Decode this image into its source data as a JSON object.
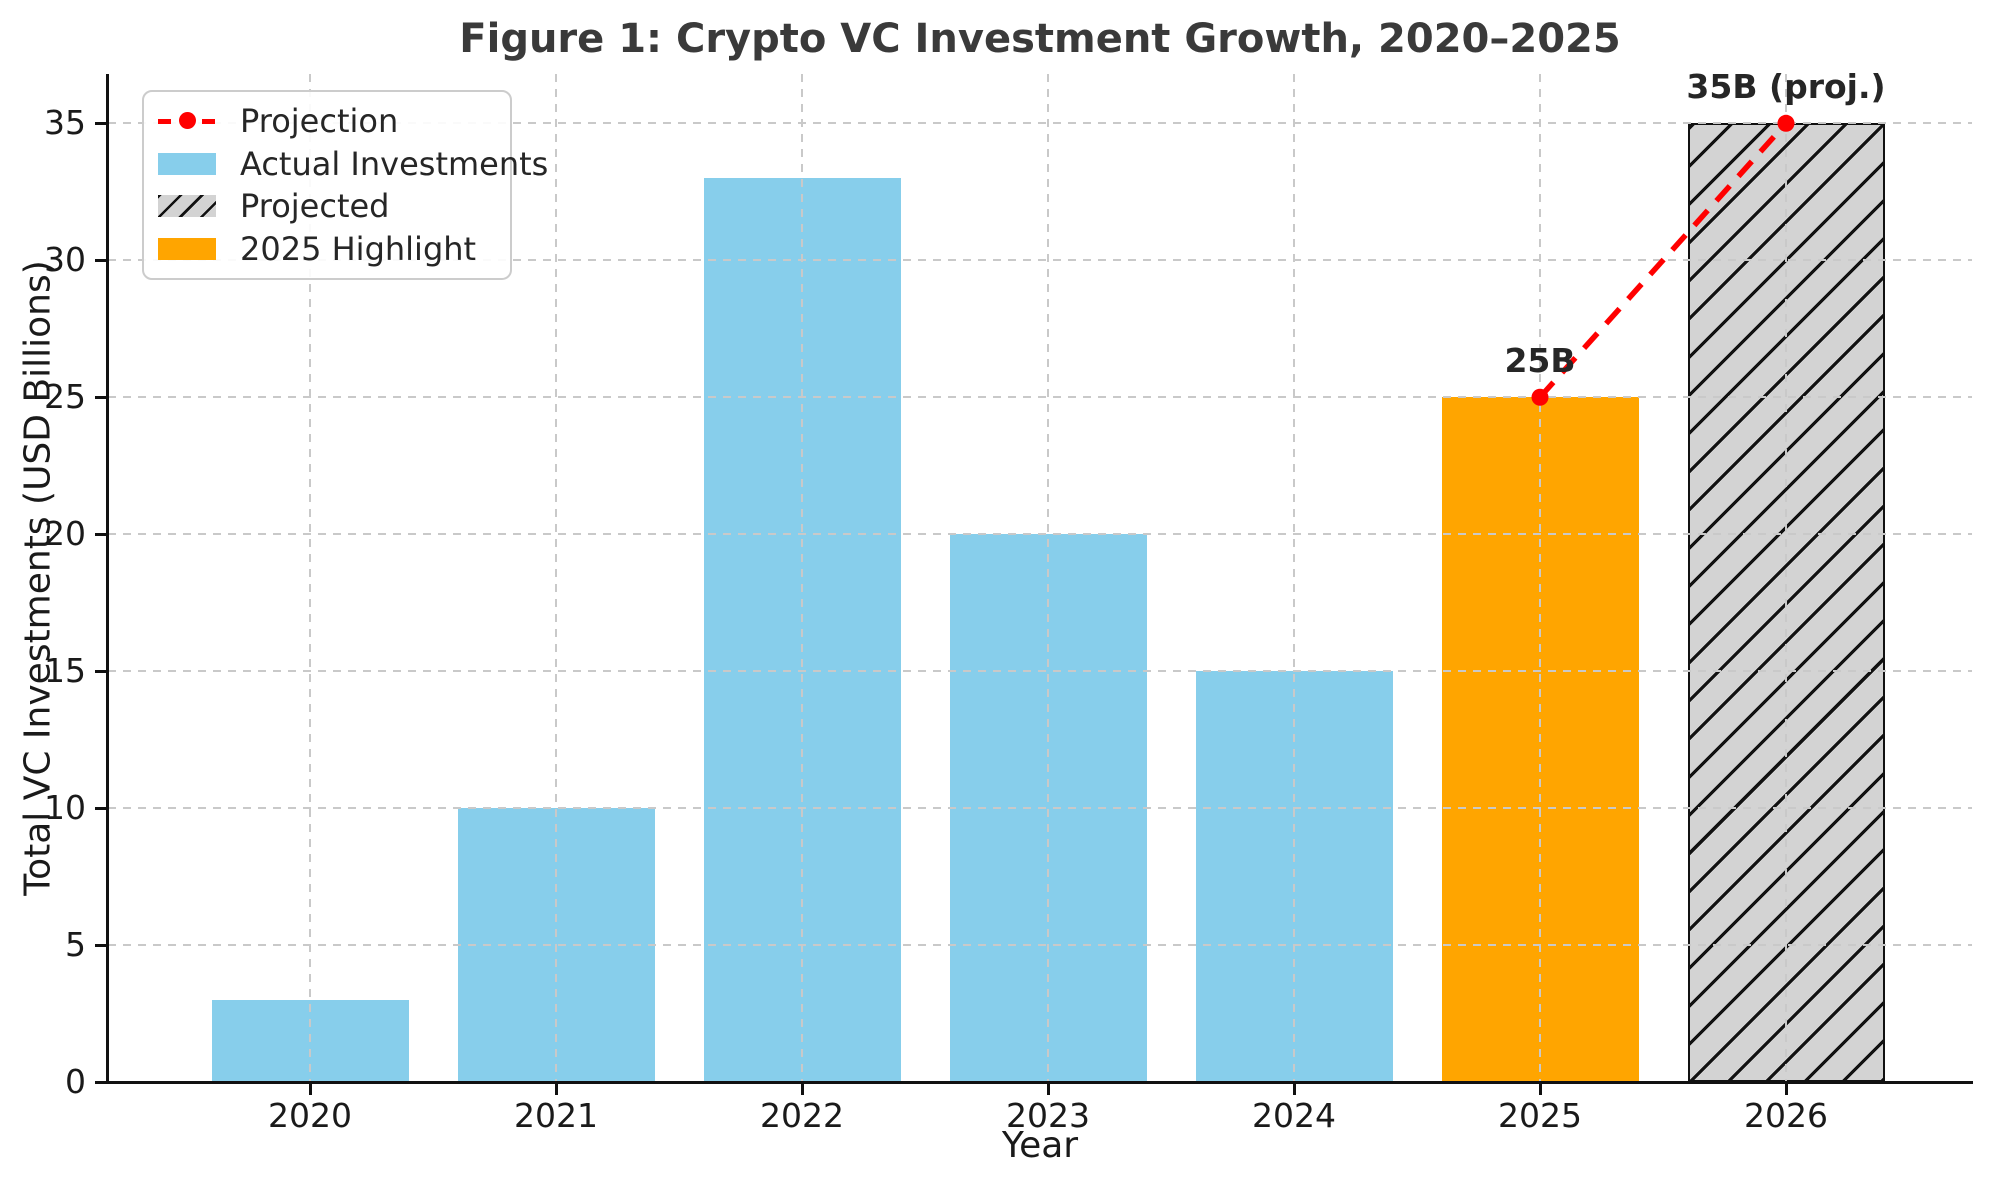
{
  "chart_data": {
    "type": "bar",
    "title": "Figure 1: Crypto VC Investment Growth, 2020–2025",
    "xlabel": "Year",
    "ylabel": "Total VC Investments (USD Billions)",
    "categories": [
      "2020",
      "2021",
      "2022",
      "2023",
      "2024",
      "2025",
      "2026"
    ],
    "bars": [
      {
        "category": "2020",
        "value": 3,
        "series": "Actual Investments",
        "color": "#87CEEB",
        "hatch": false
      },
      {
        "category": "2021",
        "value": 10,
        "series": "Actual Investments",
        "color": "#87CEEB",
        "hatch": false
      },
      {
        "category": "2022",
        "value": 33,
        "series": "Actual Investments",
        "color": "#87CEEB",
        "hatch": false
      },
      {
        "category": "2023",
        "value": 20,
        "series": "Actual Investments",
        "color": "#87CEEB",
        "hatch": false
      },
      {
        "category": "2024",
        "value": 15,
        "series": "Actual Investments",
        "color": "#87CEEB",
        "hatch": false
      },
      {
        "category": "2025",
        "value": 25,
        "series": "2025 Highlight",
        "color": "#FFA500",
        "hatch": false
      },
      {
        "category": "2026",
        "value": 35,
        "series": "Projected",
        "color": "#D3D3D3",
        "hatch": true
      }
    ],
    "projection_line": {
      "name": "Projection",
      "color": "#FF0000",
      "style": "dashed",
      "marker": "circle",
      "points": [
        {
          "category": "2025",
          "value": 25
        },
        {
          "category": "2026",
          "value": 35
        }
      ]
    },
    "annotations": [
      {
        "text": "25B",
        "category": "2025",
        "value": 25
      },
      {
        "text": "35B (proj.)",
        "category": "2026",
        "value": 35
      }
    ],
    "yticks": [
      0,
      5,
      10,
      15,
      20,
      25,
      30,
      35
    ],
    "ylim": [
      0,
      36.8
    ],
    "grid": true,
    "grid_color": "#c9c9c9",
    "legend": {
      "position": "upper-left",
      "items": [
        {
          "label": "Projection",
          "swatch": "dashed-line-marker",
          "color": "#FF0000"
        },
        {
          "label": "Actual Investments",
          "swatch": "patch",
          "color": "#87CEEB"
        },
        {
          "label": "Projected",
          "swatch": "hatch-patch",
          "color": "#D3D3D3"
        },
        {
          "label": "2025 Highlight",
          "swatch": "patch",
          "color": "#FFA500"
        }
      ]
    }
  }
}
